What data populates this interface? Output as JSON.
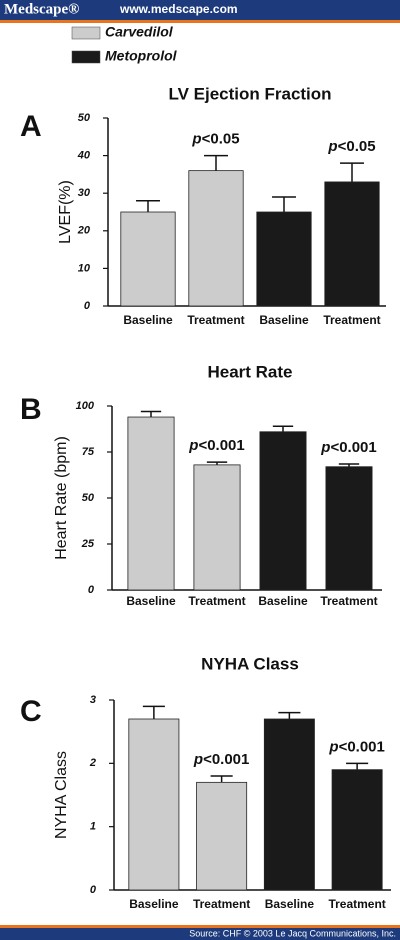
{
  "header": {
    "brand": "Medscape®",
    "url": "www.medscape.com"
  },
  "footer": {
    "source": "Source: CHF © 2003 Le Jacq Communications, Inc."
  },
  "legend": [
    {
      "name": "Carvedilol",
      "color": "#cccccc"
    },
    {
      "name": "Metoprolol",
      "color": "#1a1a1a"
    }
  ],
  "chart_data": [
    {
      "type": "bar",
      "panel": "A",
      "title": "LV Ejection Fraction",
      "ylabel": "LVEF(%)",
      "categories": [
        "Baseline",
        "Treatment",
        "Baseline",
        "Treatment"
      ],
      "values": [
        25,
        36,
        25,
        33
      ],
      "errors": [
        3,
        4,
        4,
        5
      ],
      "colors": [
        "#cccccc",
        "#cccccc",
        "#1a1a1a",
        "#1a1a1a"
      ],
      "annotations": [
        null,
        "p<0.05",
        null,
        "p<0.05"
      ],
      "ylim": [
        0,
        50
      ],
      "yticks": [
        0,
        10,
        20,
        30,
        40,
        50
      ]
    },
    {
      "type": "bar",
      "panel": "B",
      "title": "Heart Rate",
      "ylabel": "Heart Rate (bpm)",
      "categories": [
        "Baseline",
        "Treatment",
        "Baseline",
        "Treatment"
      ],
      "values": [
        94,
        68,
        86,
        67
      ],
      "errors": [
        3,
        1.5,
        3,
        1.5
      ],
      "colors": [
        "#cccccc",
        "#cccccc",
        "#1a1a1a",
        "#1a1a1a"
      ],
      "annotations": [
        null,
        "p<0.001",
        null,
        "p<0.001"
      ],
      "ylim": [
        0,
        100
      ],
      "yticks": [
        0,
        25,
        50,
        75,
        100
      ]
    },
    {
      "type": "bar",
      "panel": "C",
      "title": "NYHA Class",
      "ylabel": "NYHA Class",
      "categories": [
        "Baseline",
        "Treatment",
        "Baseline",
        "Treatment"
      ],
      "values": [
        2.7,
        1.7,
        2.7,
        1.9
      ],
      "errors": [
        0.2,
        0.1,
        0.1,
        0.1
      ],
      "colors": [
        "#cccccc",
        "#cccccc",
        "#1a1a1a",
        "#1a1a1a"
      ],
      "annotations": [
        null,
        "p<0.001",
        null,
        "p<0.001"
      ],
      "ylim": [
        0,
        3
      ],
      "yticks": [
        0,
        1,
        2,
        3
      ]
    }
  ]
}
